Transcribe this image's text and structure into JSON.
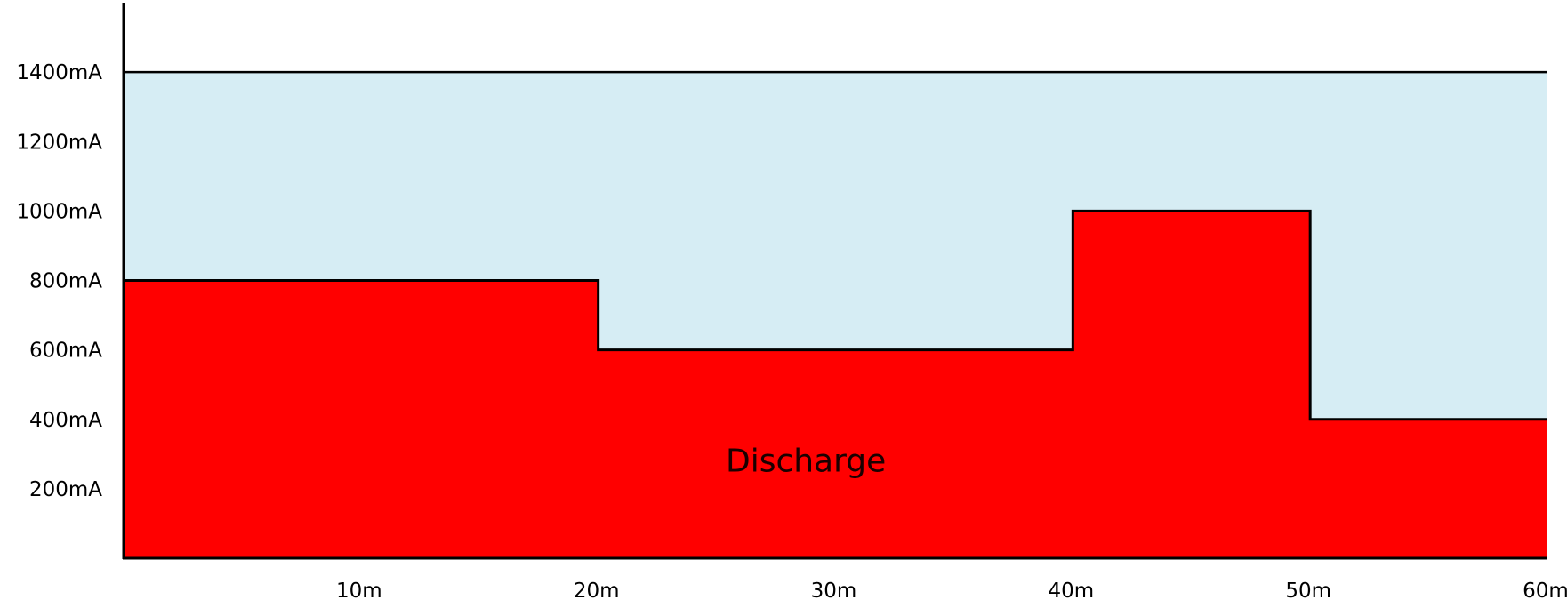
{
  "chart_data": {
    "type": "area",
    "title": "",
    "xlabel": "",
    "ylabel": "",
    "xlim": [
      0,
      60
    ],
    "ylim": [
      0,
      1600
    ],
    "x_ticks": [
      10,
      20,
      30,
      40,
      50,
      60
    ],
    "x_tick_labels": [
      "10m",
      "20m",
      "30m",
      "40m",
      "50m",
      "60m"
    ],
    "y_ticks": [
      200,
      400,
      600,
      800,
      1000,
      1200,
      1400
    ],
    "y_tick_labels": [
      "200mA",
      "400mA",
      "600mA",
      "800mA",
      "1000mA",
      "1200mA",
      "1400mA"
    ],
    "capacity": {
      "value": 1400,
      "color": "#d6edf4",
      "line_color": "#000000"
    },
    "discharge": {
      "steps": [
        {
          "x_start": 0,
          "x_end": 20,
          "value": 800
        },
        {
          "x_start": 20,
          "x_end": 40,
          "value": 600
        },
        {
          "x_start": 40,
          "x_end": 50,
          "value": 1000
        },
        {
          "x_start": 50,
          "x_end": 60,
          "value": 400
        }
      ],
      "color": "#ff0000",
      "edge_color": "#000000"
    },
    "annotations": [
      {
        "text": "Discharge",
        "x": 28,
        "y": 280
      }
    ],
    "grid": false,
    "legend": "none"
  }
}
